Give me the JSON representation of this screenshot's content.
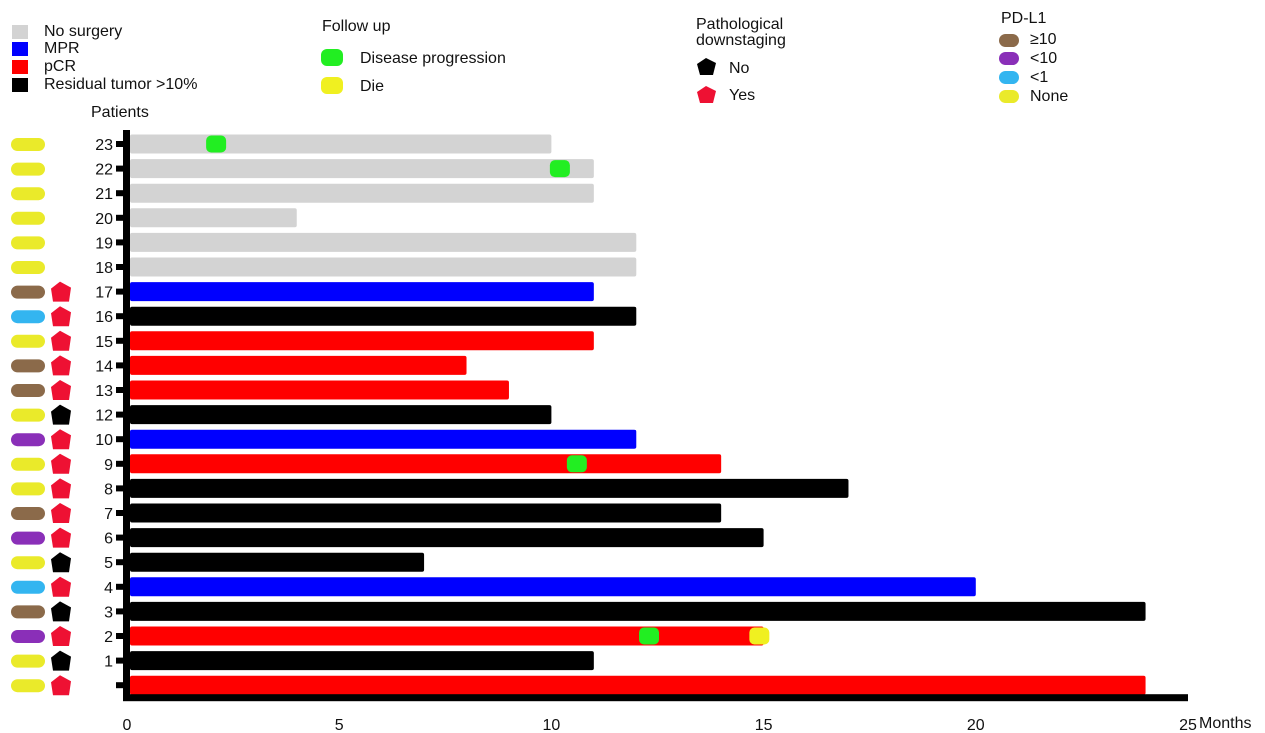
{
  "legends": {
    "status": {
      "items": [
        {
          "label": "No surgery",
          "color": "#d3d3d3"
        },
        {
          "label": "MPR",
          "color": "#0000ff"
        },
        {
          "label": "pCR",
          "color": "#ff0000"
        },
        {
          "label": "Residual tumor >10%",
          "color": "#000000"
        }
      ]
    },
    "followup": {
      "title": "Follow up",
      "items": [
        {
          "label": "Disease progression",
          "color": "#22ee22"
        },
        {
          "label": "Die",
          "color": "#f0f020"
        }
      ]
    },
    "downstaging": {
      "title_line1": "Pathological",
      "title_line2": "downstaging",
      "items": [
        {
          "label": "No",
          "color": "#000000"
        },
        {
          "label": "Yes",
          "color": "#ee1133"
        }
      ]
    },
    "pdl1": {
      "title": "PD-L1",
      "items": [
        {
          "label": "≥10",
          "color": "#8b6a4a"
        },
        {
          "label": "<10",
          "color": "#8a2fb8"
        },
        {
          "label": "<1",
          "color": "#33b5f0"
        },
        {
          "label": "None",
          "color": "#eaea2a"
        }
      ]
    }
  },
  "chart_data": {
    "type": "bar",
    "orientation": "horizontal",
    "ylabel": "Patients",
    "xlabel": "Months",
    "xlim": [
      0,
      25
    ],
    "xticks": [
      0,
      5,
      10,
      15,
      20,
      25
    ],
    "status_colors": {
      "No surgery": "#d3d3d3",
      "MPR": "#0000ff",
      "pCR": "#ff0000",
      "Residual tumor >10%": "#000000"
    },
    "pdl1_colors": {
      "≥10": "#8b6a4a",
      "<10": "#8a2fb8",
      "<1": "#33b5f0",
      "None": "#eaea2a"
    },
    "downstaging_colors": {
      "No": "#000000",
      "Yes": "#ee1133"
    },
    "event_colors": {
      "Disease progression": "#22ee22",
      "Die": "#f0f020"
    },
    "patients": [
      {
        "id": "23",
        "months": 10,
        "status": "No surgery",
        "pdl1": "None",
        "downstaging": null,
        "events": [
          {
            "type": "Disease progression",
            "month": 2.1
          }
        ]
      },
      {
        "id": "22",
        "months": 11,
        "status": "No surgery",
        "pdl1": "None",
        "downstaging": null,
        "events": [
          {
            "type": "Disease progression",
            "month": 10.2
          }
        ]
      },
      {
        "id": "21",
        "months": 11,
        "status": "No surgery",
        "pdl1": "None",
        "downstaging": null,
        "events": []
      },
      {
        "id": "20",
        "months": 4,
        "status": "No surgery",
        "pdl1": "None",
        "downstaging": null,
        "events": []
      },
      {
        "id": "19",
        "months": 12,
        "status": "No surgery",
        "pdl1": "None",
        "downstaging": null,
        "events": []
      },
      {
        "id": "18",
        "months": 12,
        "status": "No surgery",
        "pdl1": "None",
        "downstaging": null,
        "events": []
      },
      {
        "id": "17",
        "months": 11,
        "status": "MPR",
        "pdl1": "≥10",
        "downstaging": "Yes",
        "events": []
      },
      {
        "id": "16",
        "months": 12,
        "status": "Residual tumor >10%",
        "pdl1": "<1",
        "downstaging": "Yes",
        "events": []
      },
      {
        "id": "15",
        "months": 11,
        "status": "pCR",
        "pdl1": "None",
        "downstaging": "Yes",
        "events": []
      },
      {
        "id": "14",
        "months": 8,
        "status": "pCR",
        "pdl1": "≥10",
        "downstaging": "Yes",
        "events": []
      },
      {
        "id": "13",
        "months": 9,
        "status": "pCR",
        "pdl1": "≥10",
        "downstaging": "Yes",
        "events": []
      },
      {
        "id": "12",
        "months": 10,
        "status": "Residual tumor >10%",
        "pdl1": "None",
        "downstaging": "No",
        "events": []
      },
      {
        "id": "10",
        "months": 12,
        "status": "MPR",
        "pdl1": "<10",
        "downstaging": "Yes",
        "events": []
      },
      {
        "id": "9",
        "months": 14,
        "status": "pCR",
        "pdl1": "None",
        "downstaging": "Yes",
        "events": [
          {
            "type": "Disease progression",
            "month": 10.6
          }
        ]
      },
      {
        "id": "8",
        "months": 17,
        "status": "Residual tumor >10%",
        "pdl1": "None",
        "downstaging": "Yes",
        "events": []
      },
      {
        "id": "7",
        "months": 14,
        "status": "Residual tumor >10%",
        "pdl1": "≥10",
        "downstaging": "Yes",
        "events": []
      },
      {
        "id": "6",
        "months": 15,
        "status": "Residual tumor >10%",
        "pdl1": "<10",
        "downstaging": "Yes",
        "events": []
      },
      {
        "id": "5",
        "months": 7,
        "status": "Residual tumor >10%",
        "pdl1": "None",
        "downstaging": "No",
        "events": []
      },
      {
        "id": "4",
        "months": 20,
        "status": "MPR",
        "pdl1": "<1",
        "downstaging": "Yes",
        "events": []
      },
      {
        "id": "3",
        "months": 24,
        "status": "Residual tumor >10%",
        "pdl1": "≥10",
        "downstaging": "No",
        "events": []
      },
      {
        "id": "2",
        "months": 15,
        "status": "pCR",
        "pdl1": "<10",
        "downstaging": "Yes",
        "events": [
          {
            "type": "Disease progression",
            "month": 12.3
          },
          {
            "type": "Die",
            "month": 14.9
          }
        ]
      },
      {
        "id": "1",
        "months": 11,
        "status": "Residual tumor >10%",
        "pdl1": "None",
        "downstaging": "No",
        "events": []
      },
      {
        "id": "",
        "months": 24,
        "status": "pCR",
        "pdl1": "None",
        "downstaging": "Yes",
        "events": []
      }
    ]
  }
}
